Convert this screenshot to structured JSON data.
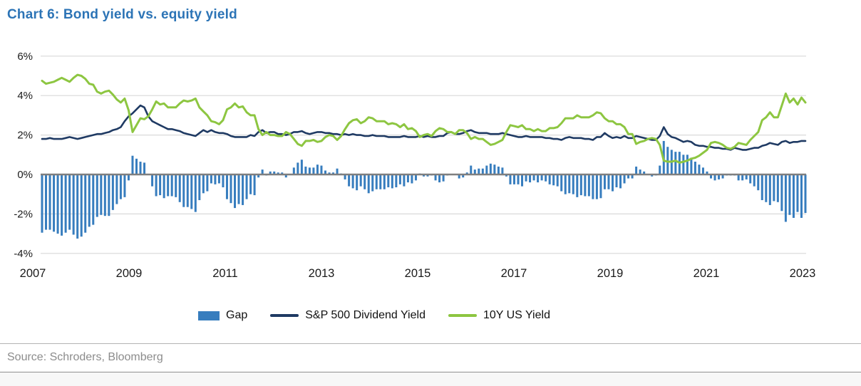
{
  "title": "Chart 6: Bond yield vs. equity yield",
  "source": "Source: Schroders, Bloomberg",
  "colors": {
    "title_text": "#2c74b6",
    "gap_bar": "#377dbe",
    "dividend_line": "#1f3a63",
    "treasury_line": "#8dc641",
    "gridline": "#d9d9d9",
    "zero_axis": "#7f7f7f",
    "axis_label_text": "#1a1a1a",
    "source_text": "#8c8c8c"
  },
  "legend": [
    {
      "label": "Gap",
      "type": "bar",
      "color": "#377dbe"
    },
    {
      "label": "S&P 500 Dividend Yield",
      "type": "line",
      "color": "#1f3a63"
    },
    {
      "label": "10Y US Yield",
      "type": "line",
      "color": "#8dc641"
    }
  ],
  "chart_data": {
    "type": "mixed-bar-line",
    "title": "Chart 6: Bond yield vs. equity yield",
    "unit": "percent",
    "x_unit": "monthly",
    "x_range": [
      "2007-01",
      "2023-03"
    ],
    "x_tick_labels": [
      "2007",
      "2009",
      "2011",
      "2013",
      "2015",
      "2017",
      "2019",
      "2021",
      "2023"
    ],
    "y_tick_labels": [
      "6%",
      "4%",
      "2%",
      "0%",
      "-2%",
      "-4%"
    ],
    "y_tick_values": [
      6,
      4,
      2,
      0,
      -2,
      -4
    ],
    "ylim": [
      -4,
      6
    ],
    "grid": "horizontal",
    "legend_position": "bottom",
    "series": [
      {
        "name": "Gap",
        "type": "bar",
        "color": "#377dbe",
        "values": [
          -2.95,
          -2.8,
          -2.8,
          -2.9,
          -3.0,
          -3.1,
          -2.95,
          -2.8,
          -3.05,
          -3.25,
          -3.15,
          -2.95,
          -2.65,
          -2.55,
          -2.15,
          -2.05,
          -2.1,
          -2.1,
          -1.8,
          -1.5,
          -1.25,
          -1.15,
          -0.3,
          0.95,
          0.8,
          0.65,
          0.6,
          0.0,
          -0.6,
          -1.1,
          -1.05,
          -1.2,
          -1.1,
          -1.1,
          -1.15,
          -1.4,
          -1.65,
          -1.65,
          -1.75,
          -1.9,
          -1.3,
          -0.95,
          -0.85,
          -0.45,
          -0.5,
          -0.45,
          -0.65,
          -1.25,
          -1.45,
          -1.7,
          -1.5,
          -1.55,
          -1.25,
          -1.0,
          -1.05,
          -0.15,
          0.25,
          -0.05,
          0.15,
          0.15,
          0.1,
          0.1,
          -0.15,
          0.0,
          0.35,
          0.6,
          0.75,
          0.4,
          0.35,
          0.35,
          0.5,
          0.45,
          0.2,
          0.1,
          0.1,
          0.3,
          0.05,
          -0.25,
          -0.6,
          -0.7,
          -0.8,
          -0.6,
          -0.75,
          -0.95,
          -0.85,
          -0.75,
          -0.75,
          -0.75,
          -0.65,
          -0.7,
          -0.65,
          -0.5,
          -0.6,
          -0.4,
          -0.45,
          -0.3,
          0.05,
          -0.1,
          -0.1,
          -0.05,
          -0.3,
          -0.4,
          -0.35,
          -0.05,
          0.0,
          0.0,
          -0.2,
          -0.15,
          0.1,
          0.45,
          0.25,
          0.3,
          0.3,
          0.45,
          0.55,
          0.5,
          0.4,
          0.35,
          -0.1,
          -0.5,
          -0.5,
          -0.5,
          -0.6,
          -0.35,
          -0.4,
          -0.3,
          -0.4,
          -0.3,
          -0.35,
          -0.5,
          -0.55,
          -0.6,
          -0.85,
          -1.0,
          -0.95,
          -1.0,
          -1.15,
          -1.05,
          -1.1,
          -1.1,
          -1.25,
          -1.25,
          -1.2,
          -0.75,
          -0.75,
          -0.85,
          -0.65,
          -0.7,
          -0.45,
          -0.2,
          -0.2,
          0.4,
          0.25,
          0.15,
          0.0,
          -0.1,
          -0.05,
          0.45,
          1.7,
          1.4,
          1.25,
          1.15,
          1.15,
          1.0,
          1.0,
          0.85,
          0.65,
          0.5,
          0.35,
          0.15,
          -0.2,
          -0.3,
          -0.25,
          -0.2,
          -0.05,
          -0.05,
          -0.05,
          -0.3,
          -0.3,
          -0.25,
          -0.45,
          -0.6,
          -0.8,
          -1.3,
          -1.4,
          -1.55,
          -1.35,
          -1.4,
          -1.85,
          -2.4,
          -2.05,
          -2.2,
          -1.9,
          -2.2,
          -1.95
        ]
      },
      {
        "name": "S&P 500 Dividend Yield",
        "type": "line",
        "color": "#1f3a63",
        "values": [
          1.8,
          1.8,
          1.85,
          1.8,
          1.8,
          1.8,
          1.85,
          1.9,
          1.85,
          1.8,
          1.85,
          1.9,
          1.95,
          2.0,
          2.05,
          2.05,
          2.1,
          2.15,
          2.25,
          2.3,
          2.4,
          2.7,
          2.95,
          3.1,
          3.3,
          3.5,
          3.4,
          2.95,
          2.7,
          2.6,
          2.5,
          2.4,
          2.3,
          2.3,
          2.25,
          2.2,
          2.1,
          2.05,
          2.0,
          1.95,
          2.1,
          2.25,
          2.15,
          2.25,
          2.15,
          2.1,
          2.1,
          2.05,
          1.95,
          1.9,
          1.9,
          1.9,
          1.9,
          2.0,
          1.95,
          2.15,
          2.25,
          2.1,
          2.15,
          2.15,
          2.05,
          2.05,
          2.0,
          2.05,
          2.15,
          2.15,
          2.2,
          2.1,
          2.05,
          2.1,
          2.15,
          2.15,
          2.1,
          2.1,
          2.05,
          2.05,
          2.0,
          2.05,
          2.0,
          2.05,
          2.0,
          2.0,
          1.95,
          1.95,
          2.0,
          1.95,
          1.95,
          1.95,
          1.9,
          1.9,
          1.9,
          1.9,
          1.95,
          1.9,
          1.9,
          1.9,
          1.95,
          1.9,
          1.95,
          1.9,
          1.9,
          1.95,
          1.95,
          2.1,
          2.15,
          2.05,
          2.05,
          2.1,
          2.2,
          2.25,
          2.15,
          2.1,
          2.1,
          2.1,
          2.05,
          2.05,
          2.05,
          2.1,
          2.05,
          2.0,
          1.95,
          1.9,
          1.9,
          1.95,
          1.9,
          1.9,
          1.9,
          1.9,
          1.85,
          1.85,
          1.8,
          1.8,
          1.75,
          1.85,
          1.9,
          1.85,
          1.85,
          1.85,
          1.8,
          1.8,
          1.75,
          1.9,
          1.9,
          2.1,
          1.95,
          1.85,
          1.9,
          1.85,
          1.95,
          1.85,
          1.85,
          1.95,
          1.9,
          1.85,
          1.8,
          1.75,
          1.75,
          1.95,
          2.4,
          2.05,
          1.9,
          1.85,
          1.75,
          1.65,
          1.7,
          1.65,
          1.5,
          1.45,
          1.45,
          1.4,
          1.4,
          1.35,
          1.35,
          1.3,
          1.3,
          1.25,
          1.35,
          1.3,
          1.25,
          1.25,
          1.3,
          1.35,
          1.35,
          1.45,
          1.5,
          1.6,
          1.55,
          1.5,
          1.65,
          1.7,
          1.6,
          1.65,
          1.65,
          1.7,
          1.7
        ]
      },
      {
        "name": "10Y US Yield",
        "type": "line",
        "color": "#8dc641",
        "values": [
          4.75,
          4.6,
          4.65,
          4.7,
          4.8,
          4.9,
          4.8,
          4.7,
          4.9,
          5.05,
          5.0,
          4.85,
          4.6,
          4.55,
          4.2,
          4.1,
          4.2,
          4.25,
          4.05,
          3.8,
          3.65,
          3.85,
          3.25,
          2.15,
          2.5,
          2.85,
          2.8,
          2.95,
          3.3,
          3.7,
          3.55,
          3.6,
          3.4,
          3.4,
          3.4,
          3.6,
          3.75,
          3.7,
          3.75,
          3.85,
          3.4,
          3.2,
          3.0,
          2.7,
          2.65,
          2.55,
          2.75,
          3.3,
          3.4,
          3.6,
          3.4,
          3.45,
          3.15,
          3.0,
          3.0,
          2.3,
          2.0,
          2.15,
          2.0,
          2.0,
          1.95,
          1.95,
          2.15,
          2.05,
          1.8,
          1.55,
          1.45,
          1.7,
          1.7,
          1.75,
          1.65,
          1.7,
          1.9,
          2.0,
          1.95,
          1.75,
          1.95,
          2.3,
          2.6,
          2.75,
          2.8,
          2.6,
          2.7,
          2.9,
          2.85,
          2.7,
          2.7,
          2.7,
          2.55,
          2.6,
          2.55,
          2.4,
          2.55,
          2.3,
          2.35,
          2.2,
          1.9,
          2.0,
          2.05,
          1.95,
          2.2,
          2.35,
          2.3,
          2.15,
          2.15,
          2.05,
          2.25,
          2.25,
          2.1,
          1.8,
          1.9,
          1.8,
          1.8,
          1.65,
          1.5,
          1.55,
          1.65,
          1.75,
          2.15,
          2.5,
          2.45,
          2.4,
          2.5,
          2.3,
          2.3,
          2.2,
          2.3,
          2.2,
          2.2,
          2.35,
          2.35,
          2.4,
          2.6,
          2.85,
          2.85,
          2.85,
          3.0,
          2.9,
          2.9,
          2.9,
          3.0,
          3.15,
          3.1,
          2.85,
          2.7,
          2.7,
          2.55,
          2.55,
          2.4,
          2.05,
          2.05,
          1.55,
          1.65,
          1.7,
          1.8,
          1.85,
          1.8,
          1.5,
          0.7,
          0.65,
          0.65,
          0.7,
          0.6,
          0.65,
          0.7,
          0.8,
          0.85,
          0.95,
          1.1,
          1.25,
          1.6,
          1.65,
          1.6,
          1.5,
          1.35,
          1.3,
          1.4,
          1.6,
          1.55,
          1.5,
          1.75,
          1.95,
          2.15,
          2.75,
          2.9,
          3.15,
          2.9,
          2.9,
          3.5,
          4.1,
          3.65,
          3.85,
          3.55,
          3.9,
          3.65
        ]
      }
    ]
  }
}
